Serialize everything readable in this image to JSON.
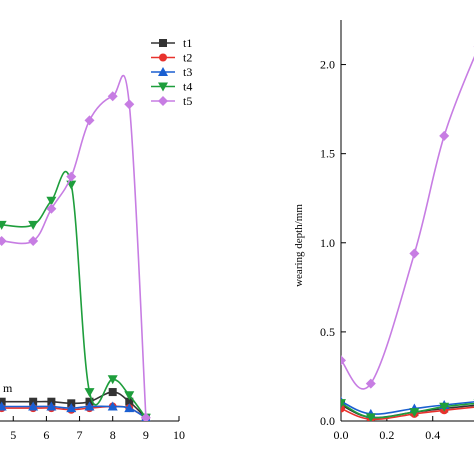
{
  "chart_data": [
    {
      "type": "line",
      "title": "",
      "xlabel": "m",
      "ylabel": "",
      "xlim": [
        4.6,
        10
      ],
      "ylim": [
        -0.02,
        2.35
      ],
      "x_ticks": [
        5,
        6,
        7,
        8,
        9,
        10
      ],
      "x_tick_labels": [
        "5",
        "6",
        "7",
        "8",
        "9",
        "10"
      ],
      "legend_position": "top-right",
      "series": [
        {
          "name": "t1",
          "color": "#333333",
          "marker": "square",
          "x": [
            4.65,
            5.6,
            6.15,
            6.75,
            7.3,
            8.0,
            8.5,
            9.0
          ],
          "y": [
            0.1,
            0.1,
            0.1,
            0.09,
            0.1,
            0.16,
            0.1,
            0.0
          ]
        },
        {
          "name": "t2",
          "color": "#e8322d",
          "marker": "circle",
          "x": [
            4.65,
            5.6,
            6.15,
            6.75,
            7.3,
            8.0,
            8.5,
            9.0
          ],
          "y": [
            0.06,
            0.06,
            0.06,
            0.05,
            0.06,
            0.07,
            0.06,
            0.0
          ]
        },
        {
          "name": "t3",
          "color": "#1a5fd1",
          "marker": "triangle-up",
          "x": [
            4.65,
            5.6,
            6.15,
            6.75,
            7.3,
            8.0,
            8.5,
            9.0
          ],
          "y": [
            0.07,
            0.07,
            0.07,
            0.06,
            0.07,
            0.07,
            0.06,
            0.0
          ]
        },
        {
          "name": "t4",
          "color": "#1e9e3c",
          "marker": "triangle-down",
          "x": [
            4.65,
            5.6,
            6.15,
            6.75,
            7.3,
            8.0,
            8.5,
            9.0
          ],
          "y": [
            1.2,
            1.2,
            1.35,
            1.45,
            0.16,
            0.24,
            0.14,
            0.0
          ]
        },
        {
          "name": "t5",
          "color": "#c77de3",
          "marker": "diamond",
          "x": [
            4.65,
            5.6,
            6.15,
            6.75,
            7.3,
            8.0,
            8.5,
            9.0
          ],
          "y": [
            1.1,
            1.1,
            1.3,
            1.5,
            1.85,
            2.0,
            1.95,
            0.0
          ]
        }
      ]
    },
    {
      "type": "line",
      "title": "",
      "xlabel": "",
      "ylabel": "wearing depth/mm",
      "xlim": [
        0,
        0.58
      ],
      "ylim": [
        0,
        2.25
      ],
      "x_ticks": [
        0.0,
        0.2,
        0.4
      ],
      "x_tick_labels": [
        "0.0",
        "0.2",
        "0.4"
      ],
      "y_ticks": [
        0.0,
        0.5,
        1.0,
        1.5,
        2.0
      ],
      "y_tick_labels": [
        "0.0",
        "0.5",
        "1.0",
        "1.5",
        "2.0"
      ],
      "series": [
        {
          "name": "t1",
          "color": "#333333",
          "marker": "square",
          "x": [
            0.0,
            0.13,
            0.32,
            0.45,
            0.6
          ],
          "y": [
            0.09,
            0.02,
            0.05,
            0.07,
            0.09
          ]
        },
        {
          "name": "t2",
          "color": "#e8322d",
          "marker": "circle",
          "x": [
            0.0,
            0.13,
            0.32,
            0.45,
            0.6
          ],
          "y": [
            0.07,
            0.01,
            0.04,
            0.06,
            0.08
          ]
        },
        {
          "name": "t3",
          "color": "#1a5fd1",
          "marker": "triangle-up",
          "x": [
            0.0,
            0.13,
            0.32,
            0.45,
            0.6
          ],
          "y": [
            0.11,
            0.04,
            0.07,
            0.09,
            0.11
          ]
        },
        {
          "name": "t4",
          "color": "#1e9e3c",
          "marker": "triangle-down",
          "x": [
            0.0,
            0.13,
            0.32,
            0.45,
            0.6
          ],
          "y": [
            0.1,
            0.02,
            0.05,
            0.08,
            0.1
          ]
        },
        {
          "name": "t5",
          "color": "#c77de3",
          "marker": "diamond",
          "x": [
            0.0,
            0.13,
            0.32,
            0.45,
            0.6
          ],
          "y": [
            0.34,
            0.21,
            0.94,
            1.6,
            2.1
          ]
        }
      ]
    }
  ]
}
